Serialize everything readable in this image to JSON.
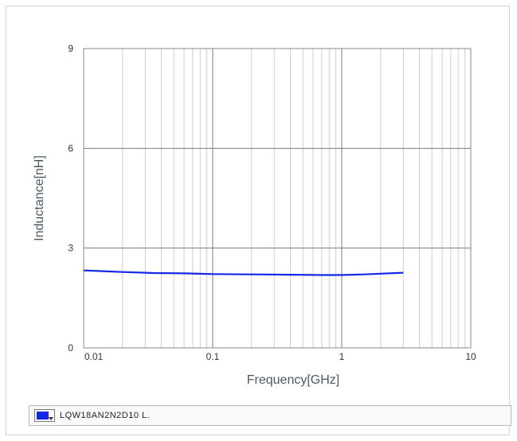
{
  "chart_data": {
    "type": "line",
    "xlabel": "Frequency[GHz]",
    "ylabel": "Inductance[nH]",
    "xscale": "log",
    "xlim": [
      0.01,
      10
    ],
    "ylim": [
      0,
      9
    ],
    "x_ticks": [
      {
        "value": 0.01,
        "label": "0.01"
      },
      {
        "value": 0.1,
        "label": "0.1"
      },
      {
        "value": 1,
        "label": "1"
      },
      {
        "value": 10,
        "label": "10"
      }
    ],
    "y_ticks": [
      {
        "value": 0,
        "label": "0"
      },
      {
        "value": 3,
        "label": "3"
      },
      {
        "value": 6,
        "label": "6"
      },
      {
        "value": 9,
        "label": "9"
      }
    ],
    "grid": true,
    "legend_position": "bottom",
    "series": [
      {
        "name": "LQW18AN2N2D10 L.",
        "color": "#1428e6",
        "x": [
          0.01,
          0.02,
          0.035,
          0.06,
          0.1,
          0.2,
          0.4,
          0.7,
          1,
          1.5,
          2,
          3
        ],
        "y": [
          2.33,
          2.28,
          2.25,
          2.24,
          2.22,
          2.21,
          2.2,
          2.19,
          2.19,
          2.21,
          2.23,
          2.26
        ]
      }
    ]
  }
}
